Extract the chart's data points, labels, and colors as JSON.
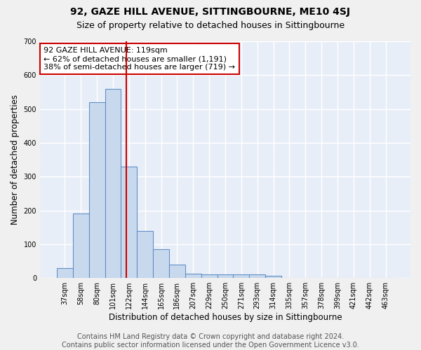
{
  "title": "92, GAZE HILL AVENUE, SITTINGBOURNE, ME10 4SJ",
  "subtitle": "Size of property relative to detached houses in Sittingbourne",
  "xlabel": "Distribution of detached houses by size in Sittingbourne",
  "ylabel": "Number of detached properties",
  "footer": "Contains HM Land Registry data © Crown copyright and database right 2024.\nContains public sector information licensed under the Open Government Licence v3.0.",
  "bin_labels": [
    "37sqm",
    "58sqm",
    "80sqm",
    "101sqm",
    "122sqm",
    "144sqm",
    "165sqm",
    "186sqm",
    "207sqm",
    "229sqm",
    "250sqm",
    "271sqm",
    "293sqm",
    "314sqm",
    "335sqm",
    "357sqm",
    "378sqm",
    "399sqm",
    "421sqm",
    "442sqm",
    "463sqm"
  ],
  "bar_values": [
    30,
    190,
    520,
    560,
    330,
    140,
    85,
    40,
    13,
    10,
    10,
    10,
    10,
    6,
    0,
    0,
    0,
    0,
    0,
    0,
    0
  ],
  "bar_color": "#c9d9ed",
  "bar_edge_color": "#6090c8",
  "bar_edge_width": 0.8,
  "red_line_x": 3.82,
  "red_line_color": "#cc0000",
  "annotation_text": "92 GAZE HILL AVENUE: 119sqm\n← 62% of detached houses are smaller (1,191)\n38% of semi-detached houses are larger (719) →",
  "annotation_box_edge_color": "#cc0000",
  "ylim": [
    0,
    700
  ],
  "yticks": [
    0,
    100,
    200,
    300,
    400,
    500,
    600,
    700
  ],
  "background_color": "#e8eef8",
  "grid_color": "#ffffff",
  "fig_bg_color": "#f0f0f0",
  "title_fontsize": 10,
  "subtitle_fontsize": 9,
  "axis_label_fontsize": 8.5,
  "tick_fontsize": 7,
  "annotation_fontsize": 8,
  "footer_fontsize": 7
}
